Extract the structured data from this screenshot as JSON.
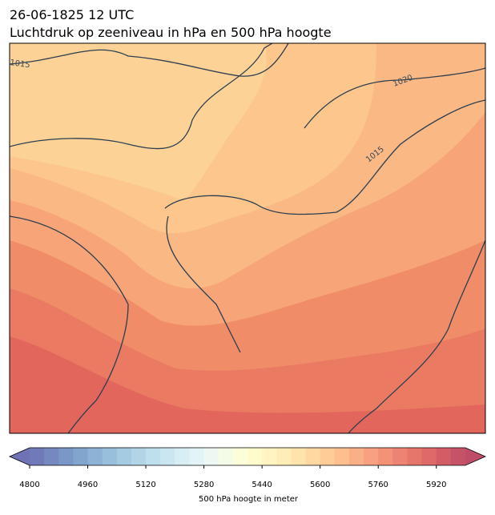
{
  "header": {
    "title": "26-06-1825 12 UTC",
    "subtitle": "Luchtdruk op zeeniveau in hPa en 500 hPa hoogte"
  },
  "map": {
    "contour_labels": [
      "1015",
      "1020",
      "1015"
    ],
    "contour_color": "#2c3e50"
  },
  "colorbar": {
    "label": "500 hPa hoogte in meter",
    "lim": [
      4800,
      6000
    ],
    "step": 40,
    "ticks": [
      4800,
      4960,
      5120,
      5280,
      5440,
      5600,
      5760,
      5920
    ],
    "colormap": [
      "#313695",
      "#4575b4",
      "#74add1",
      "#abd9e9",
      "#e0f3f8",
      "#ffffbf",
      "#fee090",
      "#fdae61",
      "#f46d43",
      "#d73027",
      "#a50026"
    ],
    "alpha": 0.7
  }
}
